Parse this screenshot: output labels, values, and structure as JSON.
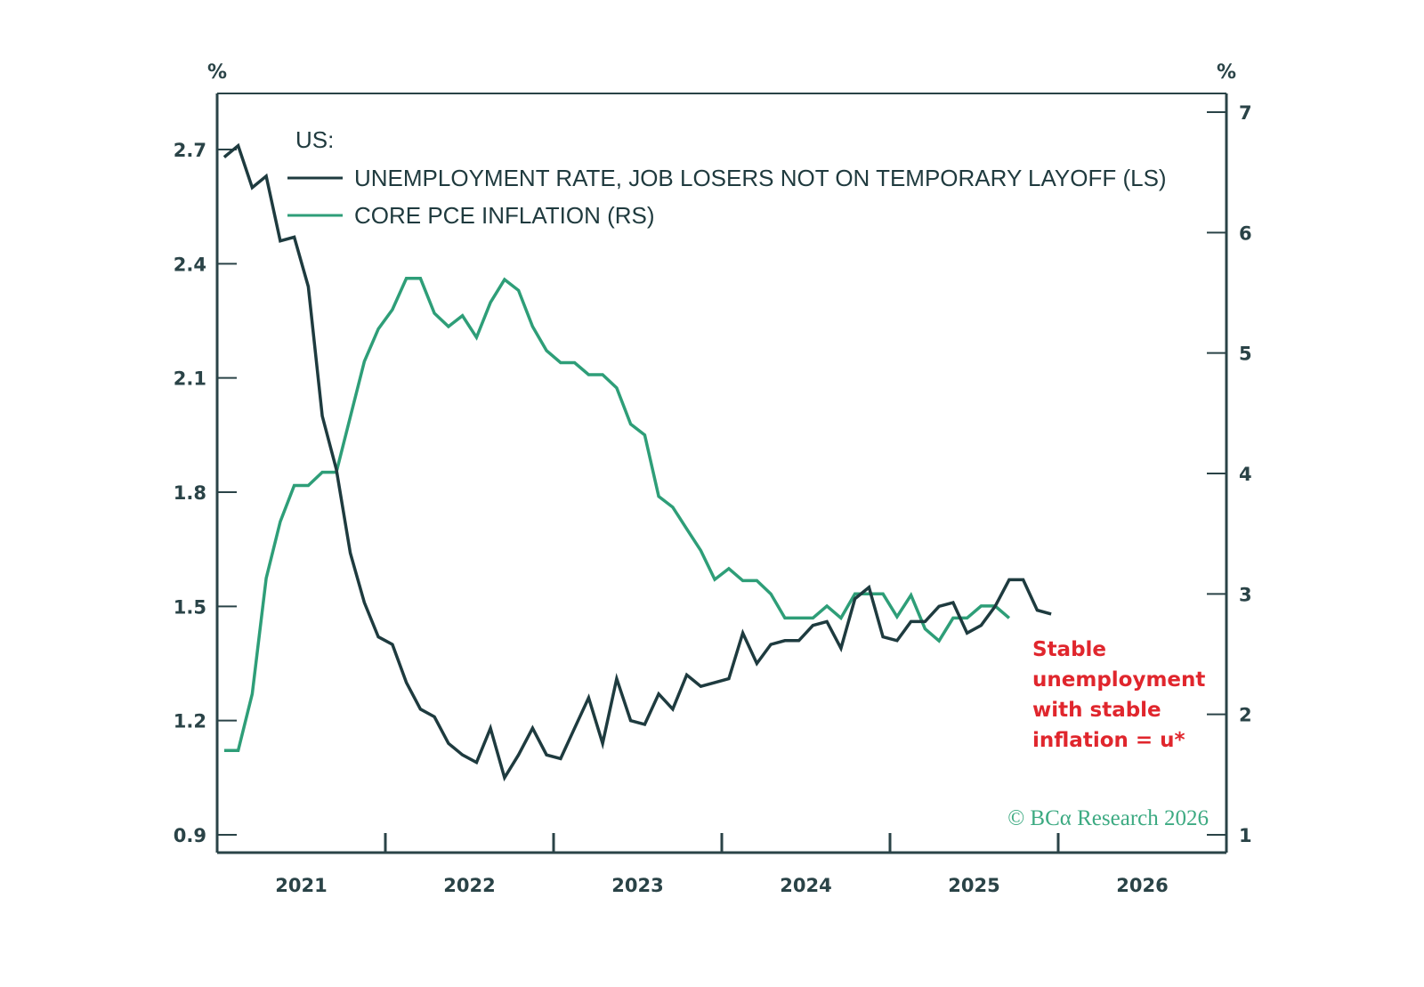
{
  "chart_data": {
    "type": "line",
    "title": "US:",
    "xlabel": "",
    "left_axis": {
      "unit": "%",
      "ticks": [
        0.9,
        1.2,
        1.5,
        1.8,
        2.1,
        2.4,
        2.7
      ],
      "tick_labels": [
        "0.9",
        "1.2",
        "1.5",
        "1.8",
        "2.1",
        "2.4",
        "2.7"
      ],
      "range": [
        0.9,
        2.7
      ]
    },
    "right_axis": {
      "unit": "%",
      "ticks": [
        1,
        2,
        3,
        4,
        5,
        6,
        7
      ],
      "tick_labels": [
        "1",
        "2",
        "3",
        "4",
        "5",
        "6",
        "7"
      ],
      "range": [
        1,
        7
      ]
    },
    "x_axis": {
      "range": [
        2021,
        2027
      ],
      "tick_years": [
        2022,
        2023,
        2024,
        2025,
        2026
      ],
      "labels": [
        "2021",
        "2022",
        "2023",
        "2024",
        "2025",
        "2026"
      ]
    },
    "x_start": "2021-01",
    "frequency": "monthly",
    "series": [
      {
        "name": "UNEMPLOYMENT RATE, JOB LOSERS NOT ON TEMPORARY LAYOFF (LS)",
        "axis": "left",
        "color": "#1e3b3f",
        "values": [
          2.68,
          2.71,
          2.6,
          2.63,
          2.46,
          2.47,
          2.34,
          2.0,
          1.86,
          1.64,
          1.51,
          1.42,
          1.4,
          1.3,
          1.23,
          1.21,
          1.14,
          1.11,
          1.09,
          1.18,
          1.05,
          1.11,
          1.18,
          1.11,
          1.1,
          1.18,
          1.26,
          1.14,
          1.31,
          1.2,
          1.19,
          1.27,
          1.23,
          1.32,
          1.29,
          1.3,
          1.31,
          1.43,
          1.35,
          1.4,
          1.41,
          1.41,
          1.45,
          1.46,
          1.39,
          1.52,
          1.55,
          1.42,
          1.41,
          1.46,
          1.46,
          1.5,
          1.51,
          1.43,
          1.45,
          1.5,
          1.57,
          1.57,
          1.49,
          1.48
        ]
      },
      {
        "name": "CORE PCE INFLATION (RS)",
        "axis": "right",
        "color": "#2e9e78",
        "values": [
          1.7,
          1.7,
          2.17,
          3.13,
          3.6,
          3.9,
          3.9,
          4.01,
          4.01,
          4.47,
          4.93,
          5.2,
          5.36,
          5.62,
          5.62,
          5.33,
          5.22,
          5.31,
          5.13,
          5.42,
          5.61,
          5.52,
          5.22,
          5.02,
          4.92,
          4.92,
          4.82,
          4.82,
          4.71,
          4.41,
          4.32,
          3.81,
          3.72,
          3.54,
          3.36,
          3.12,
          3.21,
          3.11,
          3.11,
          3.0,
          2.8,
          2.8,
          2.8,
          2.9,
          2.8,
          3.0,
          3.0,
          3.0,
          2.81,
          2.99,
          2.71,
          2.61,
          2.8,
          2.8,
          2.9,
          2.9,
          2.8
        ]
      }
    ],
    "legend": {
      "heading": "US:",
      "placement": "top-left",
      "entries": [
        "UNEMPLOYMENT RATE, JOB LOSERS NOT ON TEMPORARY LAYOFF (LS)",
        "CORE PCE INFLATION (RS)"
      ]
    },
    "annotation": {
      "lines": [
        "Stable",
        "unemployment",
        "with stable",
        "inflation = u*"
      ],
      "color": "#e0262d"
    },
    "watermark": "© BCα Research 2026",
    "grid": false
  }
}
